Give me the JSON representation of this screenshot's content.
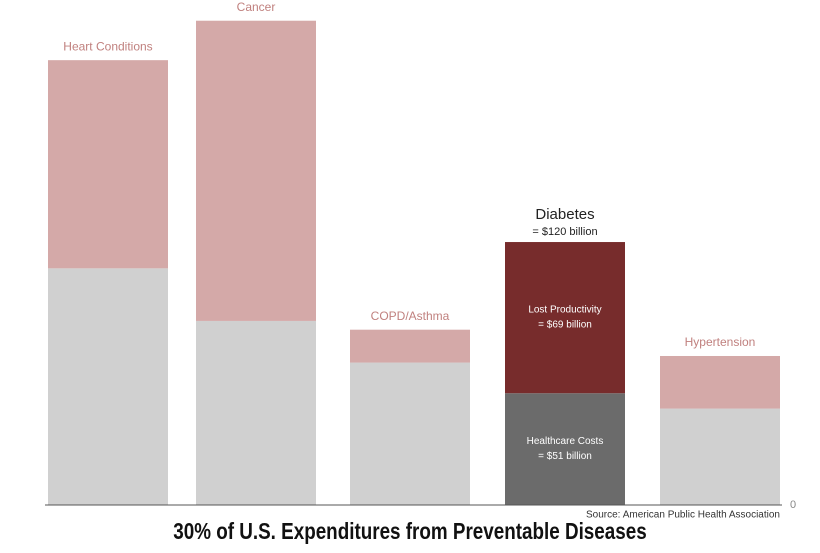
{
  "chart_data": {
    "type": "stacked_bar",
    "title": "30% of U.S. Expenditures from Preventable Diseases",
    "source": "Source: American Public Health Association",
    "categories": [
      "Heart Conditions",
      "Cancer",
      "COPD/Asthma",
      "Diabetes",
      "Hypertension"
    ],
    "series": [
      {
        "name": "Healthcare Costs",
        "color": "#d0d0d0",
        "highlight_color": "#6b6b6b",
        "values": [
          108,
          84,
          65,
          51,
          44
        ],
        "value_labels": [
          null,
          null,
          null,
          "= $51 billion",
          null
        ]
      },
      {
        "name": "Lost Productivity",
        "color": "#d4a9a8",
        "highlight_color": "#772c2c",
        "values": [
          95,
          137,
          15,
          69,
          24
        ],
        "value_labels": [
          null,
          null,
          null,
          "= $69 billion",
          null
        ]
      }
    ],
    "highlight": 3,
    "highlight_total_label": "= $120 billion",
    "ylim": [
      0,
      230
    ],
    "yticks": [
      0
    ],
    "grid": false
  }
}
